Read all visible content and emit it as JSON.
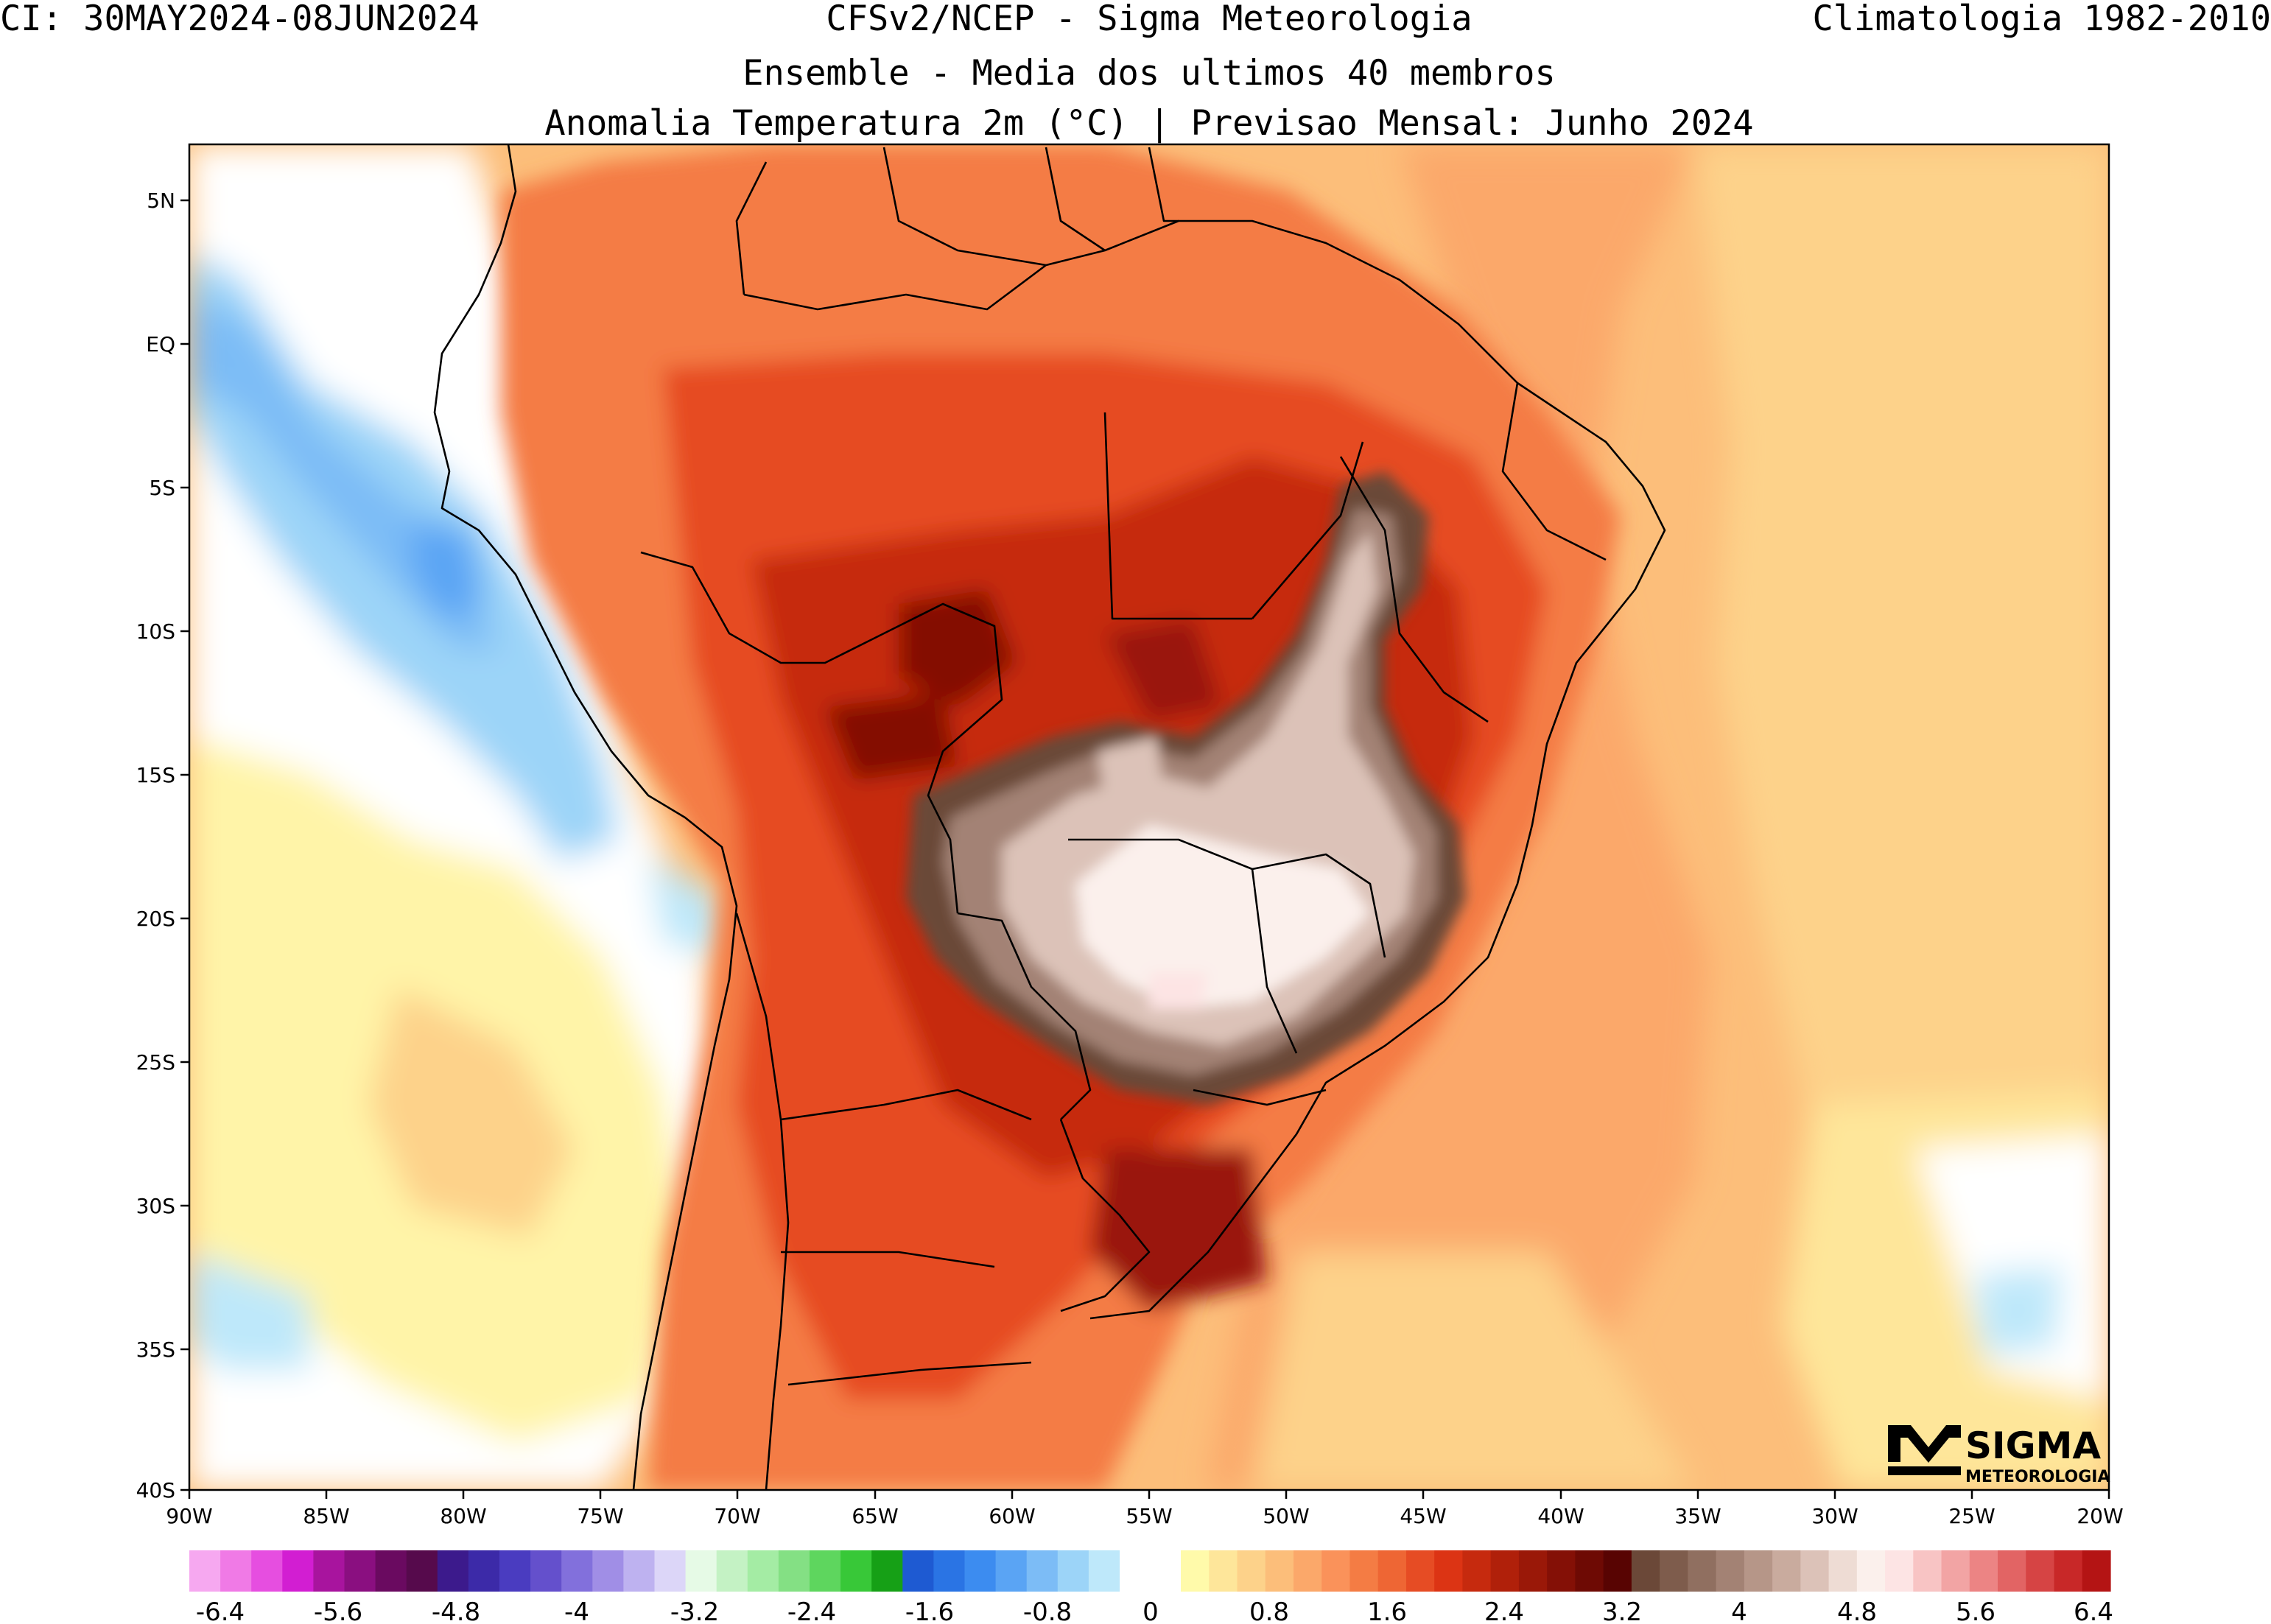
{
  "header": {
    "left": "CI: 30MAY2024-08JUN2024",
    "center": "CFSv2/NCEP - Sigma Meteorologia",
    "right": "Climatologia 1982-2010",
    "line2": "Ensemble - Media dos ultimos 40 membros",
    "line3": "Anomalia Temperatura 2m (°C) | Previsao Mensal: Junho 2024"
  },
  "map": {
    "lat_labels": [
      "5N",
      "EQ",
      "5S",
      "10S",
      "15S",
      "20S",
      "25S",
      "30S",
      "35S",
      "40S"
    ],
    "lon_labels": [
      "90W",
      "85W",
      "80W",
      "75W",
      "70W",
      "65W",
      "60W",
      "55W",
      "50W",
      "45W",
      "40W",
      "35W",
      "30W",
      "25W",
      "20W"
    ],
    "extent": {
      "lon": [
        -90,
        -20
      ],
      "lat": [
        -40,
        7
      ]
    },
    "field": "2m temperature anomaly (°C)"
  },
  "colorbar": {
    "labels": [
      "-6.4",
      "-5.6",
      "-4.8",
      "-4",
      "-3.2",
      "-2.4",
      "-1.6",
      "-0.8",
      "0",
      "0.8",
      "1.6",
      "2.4",
      "3.2",
      "4",
      "4.8",
      "5.6",
      "6.4"
    ],
    "negative_colors": [
      "#f6a8f0",
      "#f07ae6",
      "#e64ee0",
      "#d21ed2",
      "#a8149e",
      "#8a0f80",
      "#6a0a60",
      "#560a4c",
      "#3c1a8c",
      "#3c2aa8",
      "#4a3cc0",
      "#6450cc",
      "#8270dc",
      "#a08ee6",
      "#beb2f0",
      "#dcd6f8",
      "#e6fae6",
      "#c4f2c4",
      "#a4eca4",
      "#84e084",
      "#5ed65e",
      "#38c838",
      "#16a016",
      "#1e5ad2",
      "#2a74e4",
      "#3c8cf0",
      "#5aa4f4",
      "#7cbcf6",
      "#9cd4f8",
      "#bee8fa"
    ],
    "positive_colors": [
      "#fffaaa",
      "#fee69a",
      "#fdd28a",
      "#fcbe7a",
      "#fba86a",
      "#fa925a",
      "#f47c44",
      "#ee6634",
      "#e64c24",
      "#dc3414",
      "#c62a0e",
      "#b0200a",
      "#9a1808",
      "#841006",
      "#6e0a04",
      "#580402",
      "#6b4838",
      "#7e5c4c",
      "#906f60",
      "#a38274",
      "#b69688",
      "#c9ab9e",
      "#dcc2b8",
      "#eedcd4",
      "#fbf0ec",
      "#fde4e4",
      "#f8c4c4",
      "#f2a4a4",
      "#ec8484",
      "#e26464",
      "#d64444",
      "#c82828",
      "#b41414"
    ],
    "zero_color": "#ffffff"
  },
  "logo": {
    "top": "SIGMA",
    "bottom": "METEOROLOGIA"
  }
}
